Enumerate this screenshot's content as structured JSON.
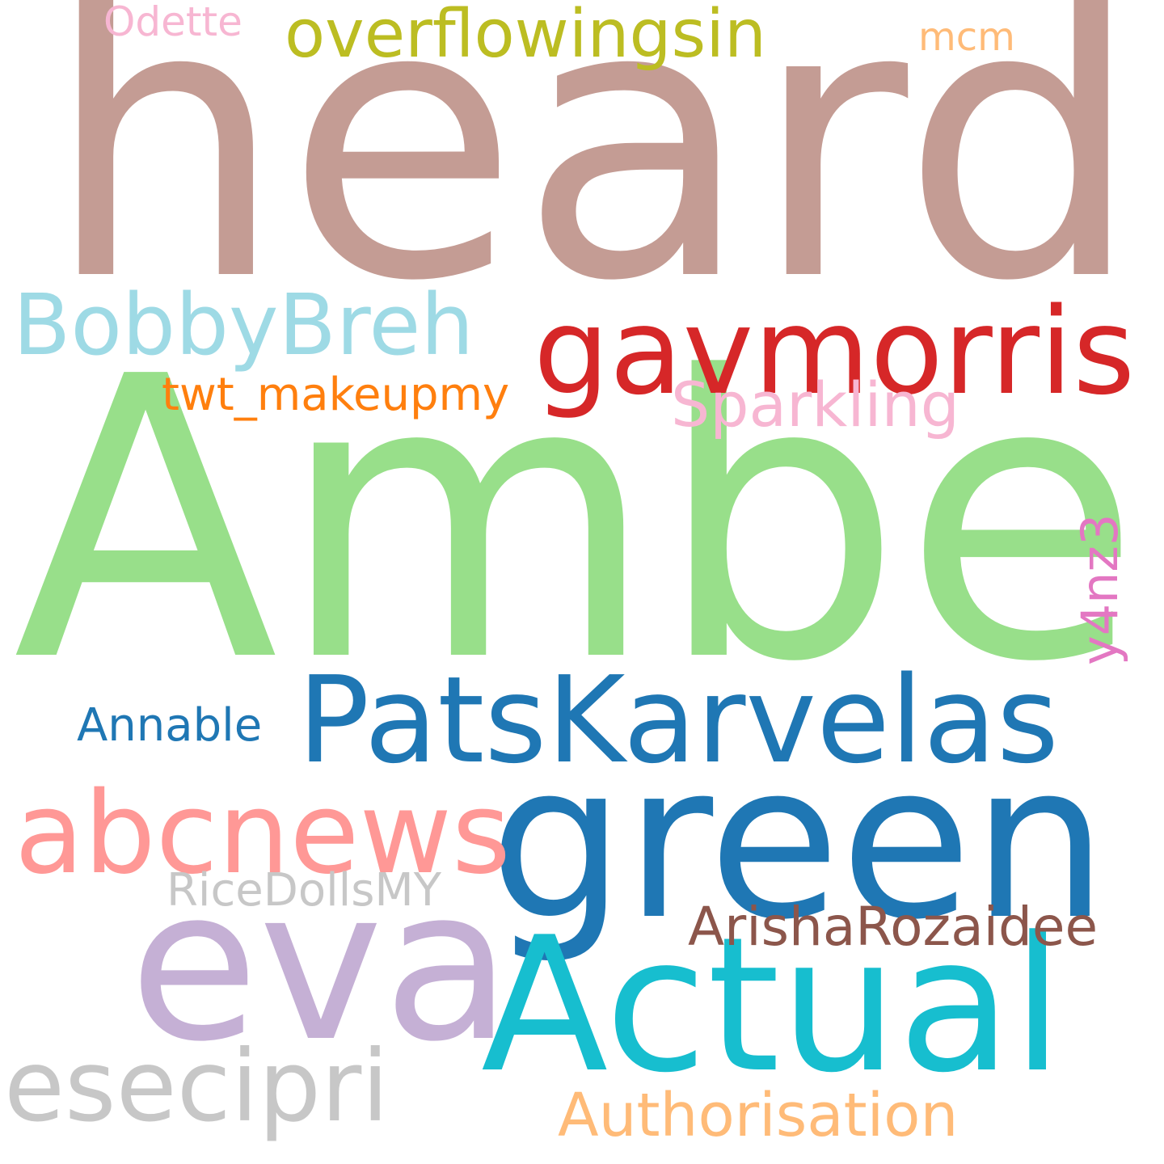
{
  "words": [
    {
      "key": "heard",
      "text": "heard",
      "color": "#c49c94"
    },
    {
      "key": "amber",
      "text": "Amber",
      "color": "#98df8a"
    },
    {
      "key": "green",
      "text": "green",
      "color": "#1f77b4"
    },
    {
      "key": "eva",
      "text": "eva",
      "color": "#c5b0d5"
    },
    {
      "key": "actual",
      "text": "Actual",
      "color": "#17becf"
    },
    {
      "key": "patskarvelas",
      "text": "PatsKarvelas",
      "color": "#1f77b4"
    },
    {
      "key": "gavmorris",
      "text": "gavmorris",
      "color": "#d62728"
    },
    {
      "key": "abcnews",
      "text": "abcnews",
      "color": "#ff9896"
    },
    {
      "key": "esecipri",
      "text": "esecipri",
      "color": "#c7c7c7"
    },
    {
      "key": "bobbybreh",
      "text": "BobbyBreh",
      "color": "#9edae5"
    },
    {
      "key": "overflowingsin",
      "text": "overflowingsin",
      "color": "#bcbd22"
    },
    {
      "key": "authorisation",
      "text": "Authorisation",
      "color": "#ffbb78"
    },
    {
      "key": "arisharozaidee",
      "text": "ArishaRozaidee",
      "color": "#8c564b"
    },
    {
      "key": "sparkling",
      "text": "Sparkling",
      "color": "#f7b6d2"
    },
    {
      "key": "twt_makeupmy",
      "text": "twt_makeupmy",
      "color": "#ff7f0e"
    },
    {
      "key": "ricedollsmy",
      "text": "RiceDollsMY",
      "color": "#c7c7c7"
    },
    {
      "key": "annable",
      "text": "Annable",
      "color": "#1f77b4"
    },
    {
      "key": "y4nz3",
      "text": "y4nz3",
      "color": "#e377c2"
    },
    {
      "key": "odette",
      "text": "Odette",
      "color": "#f7b6d2"
    },
    {
      "key": "mcm",
      "text": "mcm",
      "color": "#ffbb78"
    }
  ]
}
